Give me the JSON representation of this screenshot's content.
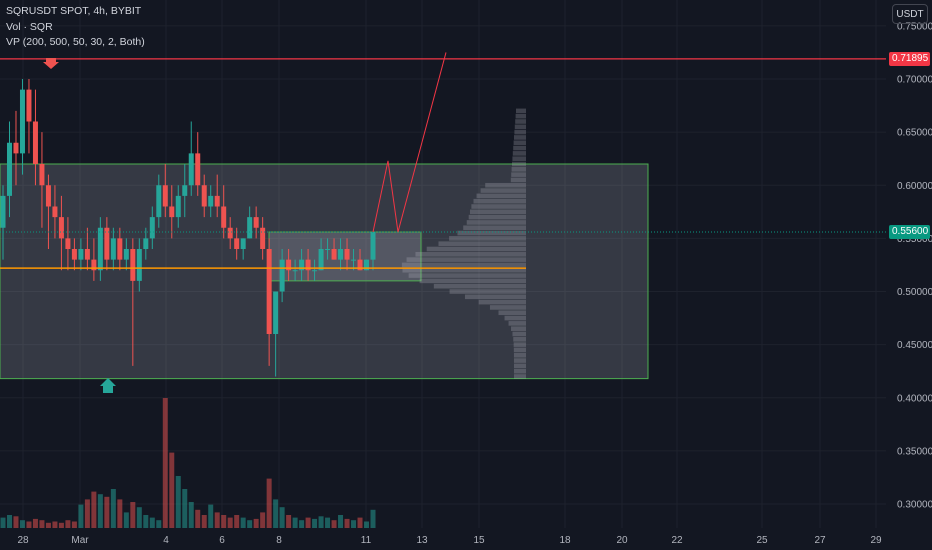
{
  "legend": {
    "symbol_line": "SQRUSDT SPOT, 4h, BYBIT",
    "volume_line": "Vol · SQR",
    "vp_line": "VP (200, 500, 50, 30, 2, Both)"
  },
  "currency_button": "USDT",
  "colors": {
    "background": "#131722",
    "up": "#26a69a",
    "down": "#ef5350",
    "resistance_line": "#f23645",
    "poc_line": "#ff9800",
    "range_border": "#4caf50",
    "current_price_tag": "#089981",
    "grid": "#1e222d"
  },
  "chart_data": {
    "type": "candlestick",
    "timeframe": "4h",
    "y_axis": {
      "ticks": [
        "0.75000",
        "0.70000",
        "0.65000",
        "0.60000",
        "0.55000",
        "0.50000",
        "0.45000",
        "0.40000",
        "0.35000",
        "0.30000"
      ],
      "range": [
        0.29,
        0.76
      ]
    },
    "x_axis": {
      "ticks": [
        "28",
        "Mar",
        "4",
        "6",
        "8",
        "11",
        "13",
        "15",
        "18",
        "20",
        "22",
        "25",
        "27",
        "29"
      ]
    },
    "price_labels": {
      "resistance": "0.71895",
      "current": "0.55600"
    },
    "levels": {
      "resistance": 0.71895,
      "current": 0.556,
      "poc": 0.522,
      "range_high": 0.62,
      "range_low": 0.418,
      "consolidation_high": 0.556,
      "consolidation_low": 0.51
    },
    "projection": [
      [
        0.556,
        0.623
      ],
      [
        0.623,
        0.556
      ],
      [
        0.556,
        0.725
      ]
    ],
    "candles_ohlc": [
      [
        0.56,
        0.6,
        0.53,
        0.59
      ],
      [
        0.59,
        0.66,
        0.57,
        0.64
      ],
      [
        0.64,
        0.67,
        0.6,
        0.63
      ],
      [
        0.63,
        0.7,
        0.61,
        0.69
      ],
      [
        0.69,
        0.7,
        0.63,
        0.66
      ],
      [
        0.66,
        0.69,
        0.6,
        0.62
      ],
      [
        0.62,
        0.65,
        0.56,
        0.6
      ],
      [
        0.6,
        0.61,
        0.54,
        0.58
      ],
      [
        0.58,
        0.6,
        0.55,
        0.57
      ],
      [
        0.57,
        0.59,
        0.52,
        0.55
      ],
      [
        0.55,
        0.57,
        0.52,
        0.54
      ],
      [
        0.54,
        0.55,
        0.52,
        0.53
      ],
      [
        0.53,
        0.55,
        0.52,
        0.54
      ],
      [
        0.54,
        0.56,
        0.52,
        0.53
      ],
      [
        0.53,
        0.55,
        0.51,
        0.52
      ],
      [
        0.52,
        0.57,
        0.51,
        0.56
      ],
      [
        0.56,
        0.57,
        0.52,
        0.53
      ],
      [
        0.53,
        0.56,
        0.52,
        0.55
      ],
      [
        0.55,
        0.56,
        0.52,
        0.53
      ],
      [
        0.53,
        0.55,
        0.52,
        0.54
      ],
      [
        0.54,
        0.55,
        0.43,
        0.51
      ],
      [
        0.51,
        0.55,
        0.5,
        0.54
      ],
      [
        0.54,
        0.56,
        0.53,
        0.55
      ],
      [
        0.55,
        0.58,
        0.54,
        0.57
      ],
      [
        0.57,
        0.61,
        0.56,
        0.6
      ],
      [
        0.6,
        0.62,
        0.57,
        0.58
      ],
      [
        0.58,
        0.6,
        0.55,
        0.57
      ],
      [
        0.57,
        0.6,
        0.56,
        0.59
      ],
      [
        0.59,
        0.62,
        0.57,
        0.6
      ],
      [
        0.6,
        0.66,
        0.59,
        0.63
      ],
      [
        0.63,
        0.65,
        0.59,
        0.6
      ],
      [
        0.6,
        0.61,
        0.57,
        0.58
      ],
      [
        0.58,
        0.6,
        0.57,
        0.59
      ],
      [
        0.59,
        0.61,
        0.57,
        0.58
      ],
      [
        0.58,
        0.6,
        0.55,
        0.56
      ],
      [
        0.56,
        0.57,
        0.54,
        0.55
      ],
      [
        0.55,
        0.56,
        0.53,
        0.54
      ],
      [
        0.54,
        0.55,
        0.53,
        0.55
      ],
      [
        0.55,
        0.58,
        0.55,
        0.57
      ],
      [
        0.57,
        0.58,
        0.55,
        0.56
      ],
      [
        0.56,
        0.57,
        0.53,
        0.54
      ],
      [
        0.54,
        0.55,
        0.43,
        0.46
      ],
      [
        0.46,
        0.5,
        0.42,
        0.5
      ],
      [
        0.5,
        0.54,
        0.49,
        0.53
      ],
      [
        0.53,
        0.54,
        0.51,
        0.52
      ],
      [
        0.52,
        0.53,
        0.51,
        0.52
      ],
      [
        0.52,
        0.54,
        0.51,
        0.53
      ],
      [
        0.53,
        0.54,
        0.51,
        0.52
      ],
      [
        0.52,
        0.53,
        0.51,
        0.52
      ],
      [
        0.52,
        0.55,
        0.52,
        0.54
      ],
      [
        0.54,
        0.55,
        0.53,
        0.54
      ],
      [
        0.54,
        0.55,
        0.53,
        0.53
      ],
      [
        0.53,
        0.55,
        0.52,
        0.54
      ],
      [
        0.54,
        0.55,
        0.52,
        0.53
      ],
      [
        0.53,
        0.54,
        0.52,
        0.53
      ],
      [
        0.53,
        0.54,
        0.52,
        0.52
      ],
      [
        0.52,
        0.53,
        0.52,
        0.53
      ],
      [
        0.53,
        0.556,
        0.52,
        0.556
      ]
    ],
    "volume_relative": [
      8,
      10,
      9,
      6,
      5,
      7,
      6,
      4,
      5,
      4,
      6,
      5,
      18,
      22,
      28,
      26,
      24,
      30,
      22,
      12,
      20,
      16,
      10,
      8,
      6,
      100,
      58,
      40,
      30,
      20,
      14,
      10,
      18,
      12,
      10,
      8,
      10,
      8,
      6,
      7,
      12,
      38,
      22,
      16,
      10,
      8,
      6,
      8,
      7,
      9,
      8,
      6,
      10,
      7,
      6,
      8,
      5,
      14
    ],
    "volume_profile_note": "right-aligned volume profile histogram spanning the range"
  }
}
